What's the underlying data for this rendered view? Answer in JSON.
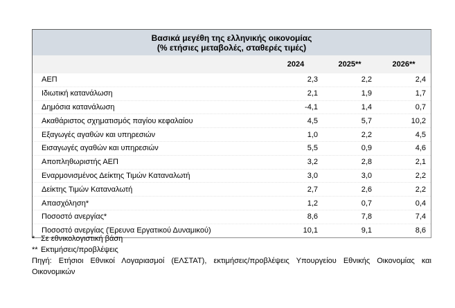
{
  "table": {
    "title_line1": "Βασικά μεγέθη της ελληνικής οικονομίας",
    "title_line2": "(% ετήσιες μεταβολές, σταθερές τιμές)",
    "columns": [
      "2024",
      "2025**",
      "2026**"
    ],
    "rows": [
      {
        "label": "ΑΕΠ",
        "values": [
          "2,3",
          "2,2",
          "2,4"
        ]
      },
      {
        "label": "Ιδιωτική κατανάλωση",
        "values": [
          "2,1",
          "1,9",
          "1,7"
        ]
      },
      {
        "label": "Δημόσια κατανάλωση",
        "values": [
          "-4,1",
          "1,4",
          "0,7"
        ]
      },
      {
        "label": "Ακαθάριστος σχηματισμός παγίου κεφαλαίου",
        "values": [
          "4,5",
          "5,7",
          "10,2"
        ]
      },
      {
        "label": "Εξαγωγές αγαθών και υπηρεσιών",
        "values": [
          "1,0",
          "2,2",
          "4,5"
        ]
      },
      {
        "label": "Εισαγωγές αγαθών και υπηρεσιών",
        "values": [
          "5,5",
          "0,9",
          "4,6"
        ]
      },
      {
        "label": "Αποπληθωριστής ΑΕΠ",
        "values": [
          "3,2",
          "2,8",
          "2,1"
        ]
      },
      {
        "label": "Εναρμονισμένος Δείκτης Τιμών Καταναλωτή",
        "values": [
          "3,0",
          "3,0",
          "2,2"
        ]
      },
      {
        "label": "Δείκτης Τιμών Καταναλωτή",
        "values": [
          "2,7",
          "2,6",
          "2,2"
        ]
      },
      {
        "label": "Απασχόληση*",
        "values": [
          "1,2",
          "0,7",
          "0,4"
        ]
      },
      {
        "label": "Ποσοστό ανεργίας*",
        "values": [
          "8,6",
          "7,8",
          "7,4"
        ]
      },
      {
        "label": "Ποσοστό ανεργίας (Έρευνα Εργατικού Δυναμικού)",
        "values": [
          "10,1",
          "9,1",
          "8,6"
        ]
      }
    ]
  },
  "footnotes": {
    "note1_marker": "*",
    "note1_text": "Σε εθνικολογιστική βάση",
    "note2_marker": "**",
    "note2_text": "Εκτιμήσεις/προβλέψεις",
    "source": "Πηγή: Ετήσιοι Εθνικοί Λογαριασμοί (ΕΛΣΤΑΤ), εκτιμήσεις/προβλέψεις Υπουργείου Εθνικής Οικονομίας και Οικονομικών"
  },
  "colors": {
    "title_bg": "#d4dbe3",
    "header_bg": "#f2f2f2",
    "border": "#8c8c8c",
    "text": "#000000"
  },
  "chart_data": {
    "type": "table",
    "title": "Βασικά μεγέθη της ελληνικής οικονομίας (% ετήσιες μεταβολές, σταθερές τιμές)",
    "columns": [
      "2024",
      "2025**",
      "2026**"
    ],
    "row_labels": [
      "ΑΕΠ",
      "Ιδιωτική κατανάλωση",
      "Δημόσια κατανάλωση",
      "Ακαθάριστος σχηματισμός παγίου κεφαλαίου",
      "Εξαγωγές αγαθών και υπηρεσιών",
      "Εισαγωγές αγαθών και υπηρεσιών",
      "Αποπληθωριστής ΑΕΠ",
      "Εναρμονισμένος Δείκτης Τιμών Καταναλωτή",
      "Δείκτης Τιμών Καταναλωτή",
      "Απασχόληση*",
      "Ποσοστό ανεργίας*",
      "Ποσοστό ανεργίας (Έρευνα Εργατικού Δυναμικού)"
    ],
    "series": [
      {
        "name": "2024",
        "values": [
          2.3,
          2.1,
          -4.1,
          4.5,
          1.0,
          5.5,
          3.2,
          3.0,
          2.7,
          1.2,
          8.6,
          10.1
        ]
      },
      {
        "name": "2025**",
        "values": [
          2.2,
          1.9,
          1.4,
          5.7,
          2.2,
          0.9,
          2.8,
          3.0,
          2.6,
          0.7,
          7.8,
          9.1
        ]
      },
      {
        "name": "2026**",
        "values": [
          2.4,
          1.7,
          0.7,
          10.2,
          4.5,
          4.6,
          2.1,
          2.2,
          2.2,
          0.4,
          7.4,
          8.6
        ]
      }
    ],
    "footnotes": [
      "* Σε εθνικολογιστική βάση",
      "** Εκτιμήσεις/προβλέψεις",
      "Πηγή: Ετήσιοι Εθνικοί Λογαριασμοί (ΕΛΣΤΑΤ), εκτιμήσεις/προβλέψεις Υπουργείου Εθνικής Οικονομίας και Οικονομικών"
    ]
  }
}
